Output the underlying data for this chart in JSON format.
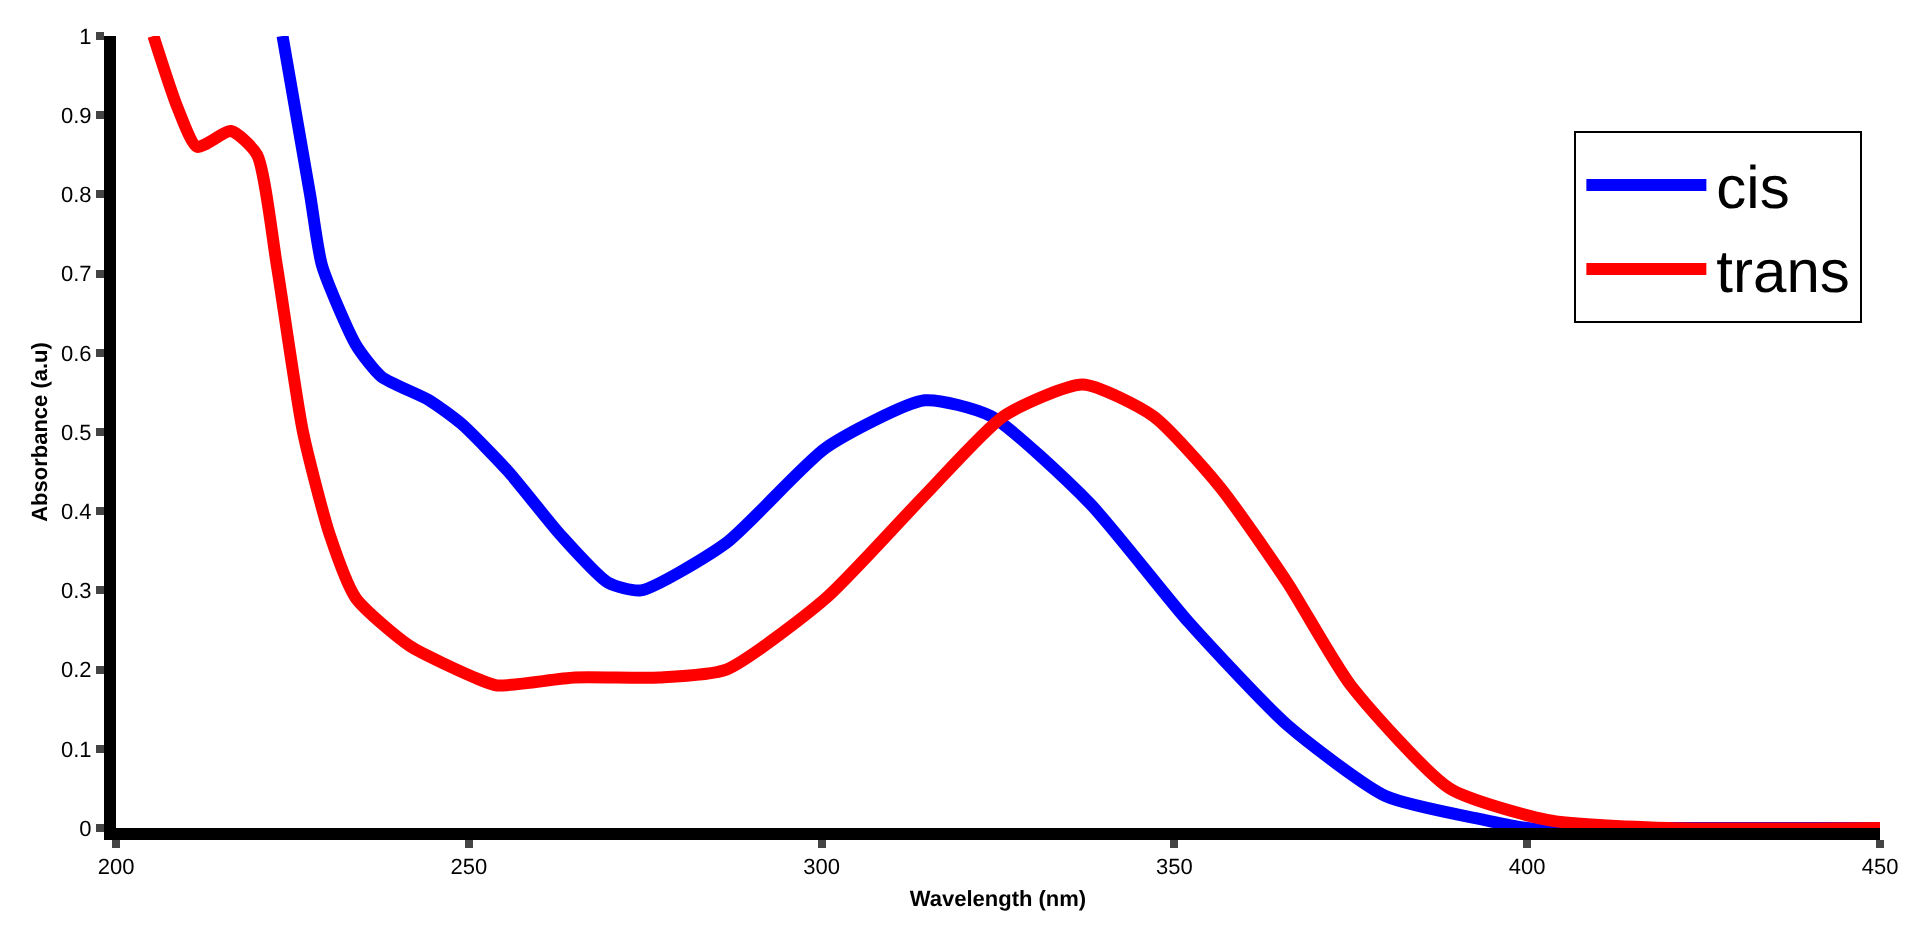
{
  "chart_data": {
    "type": "line",
    "xlabel": "Wavelength (nm)",
    "ylabel": "Absorbance (a.u)",
    "xlim": [
      200,
      450
    ],
    "xticks": [
      200,
      250,
      300,
      350,
      400,
      450
    ],
    "ylim": [
      0,
      1
    ],
    "yticks": [
      0,
      0.1,
      0.2,
      0.3,
      0.4,
      0.5,
      0.6,
      0.7,
      0.8,
      0.9,
      1
    ],
    "grid": false,
    "legend": "top right",
    "line_style": "solid",
    "marker": "none",
    "series": [
      {
        "name": "cis",
        "color": "#0000ff",
        "x": [
          223.6,
          227.5,
          229.2,
          234,
          237.6,
          244.4,
          249,
          255.6,
          263,
          269.7,
          274.4,
          286.5,
          300.6,
          314.6,
          324,
          338,
          352,
          366,
          380,
          394,
          400,
          420,
          450
        ],
        "values": [
          1.0,
          0.8,
          0.71,
          0.61,
          0.57,
          0.54,
          0.51,
          0.45,
          0.37,
          0.31,
          0.3,
          0.36,
          0.48,
          0.54,
          0.52,
          0.41,
          0.26,
          0.13,
          0.04,
          0.01,
          0,
          0,
          0
        ]
      },
      {
        "name": "trans",
        "color": "#ff0000",
        "x": [
          205.3,
          208.7,
          211.5,
          216.3,
          220,
          222.8,
          226.5,
          230.3,
          234,
          241.6,
          250.8,
          254,
          265,
          277,
          286.5,
          300.6,
          314.6,
          325.8,
          337,
          347,
          356.5,
          366,
          375,
          389,
          403,
          420,
          450
        ],
        "values": [
          1.0,
          0.91,
          0.86,
          0.88,
          0.85,
          0.71,
          0.5,
          0.37,
          0.29,
          0.23,
          0.19,
          0.18,
          0.19,
          0.19,
          0.2,
          0.29,
          0.42,
          0.52,
          0.56,
          0.52,
          0.43,
          0.31,
          0.18,
          0.05,
          0.01,
          0,
          0
        ]
      }
    ]
  }
}
